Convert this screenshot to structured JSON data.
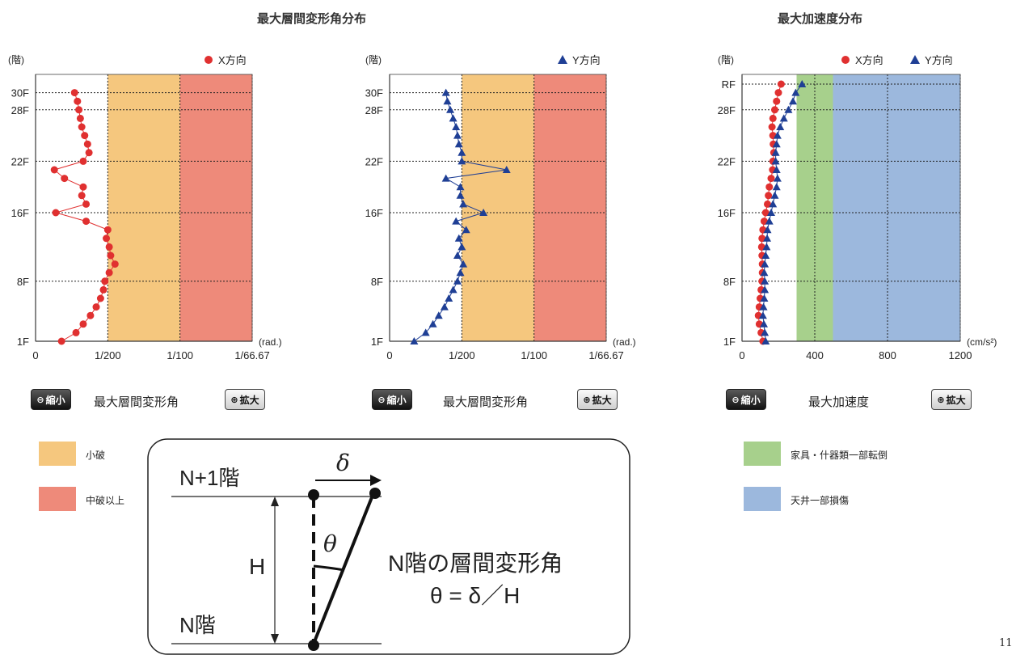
{
  "titles": {
    "left": "最大層間変形角分布",
    "right": "最大加速度分布"
  },
  "charts": {
    "ylabel": "(階)",
    "floor_ticks_drift": [
      "30F",
      "28F",
      "22F",
      "16F",
      "8F",
      "1F"
    ],
    "floor_ticks_accel": [
      "RF",
      "28F",
      "22F",
      "16F",
      "8F",
      "1F"
    ],
    "drift_x_ticks": [
      "0",
      "1/200",
      "1/100",
      "1/66.67"
    ],
    "drift_unit": "(rad.)",
    "accel_x_ticks": [
      "0",
      "400",
      "800",
      "1200"
    ],
    "accel_unit": "(cm/s²)",
    "legend_x": "X方向",
    "legend_y": "Y方向"
  },
  "controls": {
    "zoom_out": "縮小",
    "zoom_in": "拡大",
    "drift_label": "最大層間変形角",
    "accel_label": "最大加速度"
  },
  "legend_left": [
    {
      "label": "小破",
      "color": "#f5c77e"
    },
    {
      "label": "中破以上",
      "color": "#ee8a7a"
    }
  ],
  "legend_right": [
    {
      "label": "家具・什器類一部転倒",
      "color": "#a7d08c"
    },
    {
      "label": "天井一部損傷",
      "color": "#9cb8dd"
    }
  ],
  "diagram": {
    "upper_floor": "N+1階",
    "lower_floor": "N階",
    "height": "H",
    "delta": "δ",
    "theta": "θ",
    "caption_line1": "N階の層間変形角",
    "caption_line2": "θ = δ／H"
  },
  "page_number": "11",
  "colors": {
    "x_series": "#e03030",
    "y_series": "#1f3f95",
    "zone_small": "#f5c77e",
    "zone_medium": "#ee8a7a",
    "zone_furniture": "#a7d08c",
    "zone_ceiling": "#9cb8dd"
  },
  "chart_data": [
    {
      "type": "line",
      "title": "最大層間変形角分布",
      "ylabel": "(階)",
      "xlabel": "(rad.)",
      "xlim": [
        0,
        0.015
      ],
      "ylim": [
        1,
        31
      ],
      "x_tick_labels": [
        "0",
        "1/200",
        "1/100",
        "1/66.67"
      ],
      "zones": [
        {
          "name": "小破",
          "from": 0.005,
          "to": 0.01
        },
        {
          "name": "中破以上",
          "from": 0.01,
          "to": 0.015
        }
      ],
      "series": [
        {
          "name": "X方向",
          "floors": [
            1,
            2,
            3,
            4,
            5,
            6,
            7,
            8,
            9,
            10,
            11,
            12,
            13,
            14,
            15,
            16,
            17,
            18,
            19,
            20,
            21,
            22,
            23,
            24,
            25,
            26,
            27,
            28,
            29,
            30
          ],
          "values": [
            0.0018,
            0.0028,
            0.0033,
            0.0038,
            0.0042,
            0.0045,
            0.0047,
            0.0048,
            0.0051,
            0.0055,
            0.0052,
            0.0051,
            0.0049,
            0.005,
            0.0035,
            0.0014,
            0.0035,
            0.0032,
            0.0033,
            0.002,
            0.0013,
            0.0033,
            0.0037,
            0.0036,
            0.0034,
            0.0032,
            0.0031,
            0.003,
            0.0029,
            0.0027
          ]
        }
      ]
    },
    {
      "type": "line",
      "title": "最大層間変形角分布",
      "ylabel": "(階)",
      "xlabel": "(rad.)",
      "xlim": [
        0,
        0.015
      ],
      "ylim": [
        1,
        31
      ],
      "x_tick_labels": [
        "0",
        "1/200",
        "1/100",
        "1/66.67"
      ],
      "zones": [
        {
          "name": "小破",
          "from": 0.005,
          "to": 0.01
        },
        {
          "name": "中破以上",
          "from": 0.01,
          "to": 0.015
        }
      ],
      "series": [
        {
          "name": "Y方向",
          "floors": [
            1,
            2,
            3,
            4,
            5,
            6,
            7,
            8,
            9,
            10,
            11,
            12,
            13,
            14,
            15,
            16,
            17,
            18,
            19,
            20,
            21,
            22,
            23,
            24,
            25,
            26,
            27,
            28,
            29,
            30
          ],
          "values": [
            0.0017,
            0.0025,
            0.003,
            0.0034,
            0.0038,
            0.0041,
            0.0044,
            0.0047,
            0.0049,
            0.0051,
            0.0047,
            0.005,
            0.0048,
            0.0053,
            0.0046,
            0.0065,
            0.0051,
            0.0049,
            0.0049,
            0.0039,
            0.0081,
            0.005,
            0.005,
            0.0048,
            0.0047,
            0.0046,
            0.0044,
            0.0042,
            0.004,
            0.0039
          ]
        }
      ]
    },
    {
      "type": "line",
      "title": "最大加速度分布",
      "ylabel": "(階)",
      "xlabel": "(cm/s²)",
      "xlim": [
        0,
        1200
      ],
      "ylim": [
        1,
        31
      ],
      "y_tick_labels": [
        "RF",
        "28F",
        "22F",
        "16F",
        "8F",
        "1F"
      ],
      "zones": [
        {
          "name": "家具・什器類一部転倒",
          "from": 300,
          "to": 500
        },
        {
          "name": "天井一部損傷",
          "from": 500,
          "to": 1200
        }
      ],
      "series": [
        {
          "name": "X方向",
          "floors": [
            1,
            2,
            3,
            4,
            5,
            6,
            7,
            8,
            9,
            10,
            11,
            12,
            13,
            14,
            15,
            16,
            17,
            18,
            19,
            20,
            21,
            22,
            23,
            24,
            25,
            26,
            27,
            28,
            29,
            30,
            31
          ],
          "values": [
            115,
            105,
            95,
            90,
            95,
            100,
            105,
            110,
            112,
            112,
            110,
            108,
            110,
            115,
            122,
            130,
            140,
            145,
            150,
            160,
            168,
            170,
            175,
            172,
            170,
            165,
            170,
            180,
            190,
            200,
            215
          ]
        },
        {
          "name": "Y方向",
          "floors": [
            1,
            2,
            3,
            4,
            5,
            6,
            7,
            8,
            9,
            10,
            11,
            12,
            13,
            14,
            15,
            16,
            17,
            18,
            19,
            20,
            21,
            22,
            23,
            24,
            25,
            26,
            27,
            28,
            29,
            30,
            31
          ],
          "values": [
            130,
            125,
            120,
            115,
            118,
            122,
            125,
            125,
            122,
            125,
            130,
            135,
            138,
            140,
            150,
            160,
            170,
            180,
            190,
            195,
            190,
            185,
            185,
            190,
            195,
            210,
            230,
            255,
            280,
            295,
            330
          ]
        }
      ]
    }
  ]
}
